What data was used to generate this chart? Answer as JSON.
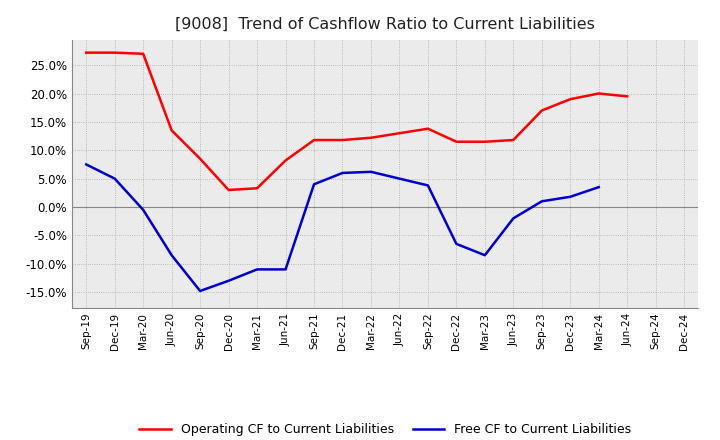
{
  "title": "[9008]  Trend of Cashflow Ratio to Current Liabilities",
  "title_fontsize": 11.5,
  "x_labels": [
    "Sep-19",
    "Dec-19",
    "Mar-20",
    "Jun-20",
    "Sep-20",
    "Dec-20",
    "Mar-21",
    "Jun-21",
    "Sep-21",
    "Dec-21",
    "Mar-22",
    "Jun-22",
    "Sep-22",
    "Dec-22",
    "Mar-23",
    "Jun-23",
    "Sep-23",
    "Dec-23",
    "Mar-24",
    "Jun-24",
    "Sep-24",
    "Dec-24"
  ],
  "operating_cf": [
    0.272,
    0.272,
    0.27,
    0.135,
    0.085,
    0.03,
    0.033,
    0.082,
    0.118,
    0.118,
    0.122,
    0.13,
    0.138,
    0.115,
    0.115,
    0.118,
    0.17,
    0.19,
    0.2,
    0.195,
    null,
    null
  ],
  "free_cf": [
    0.075,
    0.05,
    -0.005,
    -0.085,
    -0.148,
    -0.13,
    -0.11,
    -0.11,
    0.04,
    0.06,
    0.062,
    0.05,
    0.038,
    -0.065,
    -0.085,
    -0.02,
    0.01,
    0.018,
    0.035,
    null,
    null,
    null
  ],
  "operating_color": "#ff0000",
  "free_color": "#0000cd",
  "ylim": [
    -0.178,
    0.295
  ],
  "yticks": [
    -0.15,
    -0.1,
    -0.05,
    0.0,
    0.05,
    0.1,
    0.15,
    0.2,
    0.25
  ],
  "grid_color": "#aaaaaa",
  "background_color": "#ebebeb",
  "legend_operating": "Operating CF to Current Liabilities",
  "legend_free": "Free CF to Current Liabilities"
}
